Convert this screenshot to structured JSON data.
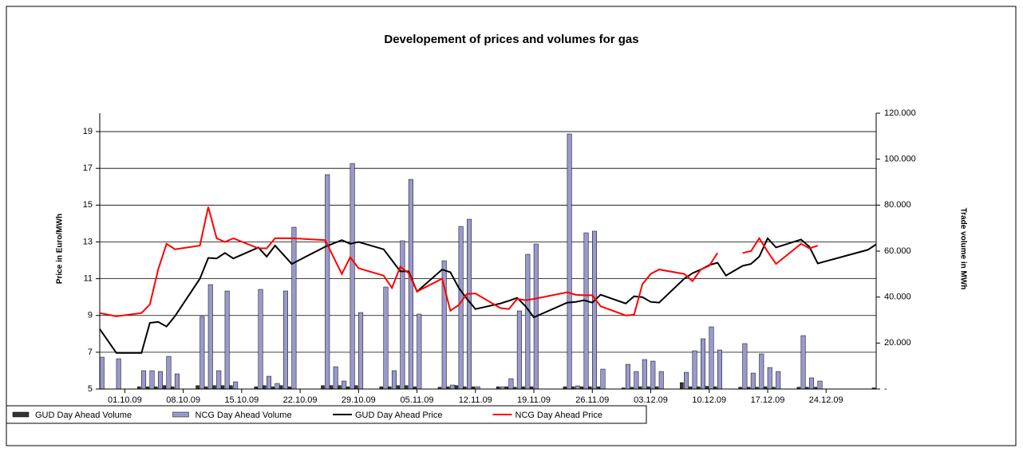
{
  "chart_data": {
    "type": "bar-line",
    "title": "Developement of prices and volumes for gas",
    "y_label": "Price in Euro/MWh",
    "y2_label": "Trade volume in MWh",
    "legend": "bottom-left",
    "grid": true,
    "xlim": [
      "28.09.09",
      "30.12.09"
    ],
    "xticks": [
      "01.10.09",
      "08.10.09",
      "15.10.09",
      "22.10.09",
      "29.10.09",
      "05.11.09",
      "12.11.09",
      "19.11.09",
      "26.11.09",
      "03.12.09",
      "10.12.09",
      "17.12.09",
      "24.12.09"
    ],
    "ylim": [
      5,
      20
    ],
    "yticks": [
      5,
      7,
      9,
      11,
      13,
      15,
      17,
      19
    ],
    "y2lim": [
      0,
      120000
    ],
    "y2ticks": [
      {
        "value": 0,
        "label": "-"
      },
      {
        "value": 20000,
        "label": "20.000"
      },
      {
        "value": 40000,
        "label": "40.000"
      },
      {
        "value": 60000,
        "label": "60.000"
      },
      {
        "value": 80000,
        "label": "80.000"
      },
      {
        "value": 100000,
        "label": "100.000"
      },
      {
        "value": 120000,
        "label": "120.000"
      }
    ],
    "x": [
      "28.09.09",
      "30.09.09",
      "03.10.09",
      "04.10.09",
      "05.10.09",
      "06.10.09",
      "07.10.09",
      "10.10.09",
      "11.10.09",
      "12.10.09",
      "13.10.09",
      "14.10.09",
      "17.10.09",
      "18.10.09",
      "19.10.09",
      "20.10.09",
      "21.10.09",
      "25.10.09",
      "26.10.09",
      "27.10.09",
      "28.10.09",
      "29.10.09",
      "01.11.09",
      "02.11.09",
      "03.11.09",
      "04.11.09",
      "05.11.09",
      "08.11.09",
      "09.11.09",
      "10.11.09",
      "11.11.09",
      "12.11.09",
      "15.11.09",
      "16.11.09",
      "17.11.09",
      "18.11.09",
      "19.11.09",
      "23.11.09",
      "24.11.09",
      "25.11.09",
      "26.11.09",
      "27.11.09",
      "30.11.09",
      "01.12.09",
      "02.12.09",
      "03.12.09",
      "04.12.09",
      "07.12.09",
      "08.12.09",
      "09.12.09",
      "10.12.09",
      "11.12.09",
      "12.12.09",
      "14.12.09",
      "15.12.09",
      "16.12.09",
      "17.12.09",
      "18.12.09",
      "21.12.09",
      "22.12.09",
      "23.12.09",
      "29.12.09",
      "30.12.09"
    ],
    "series": [
      {
        "name": "GUD Day Ahead Volume",
        "kind": "bar",
        "axis": "y2",
        "color": "#333333",
        "values": [
          null,
          null,
          1000,
          1000,
          1000,
          1500,
          1000,
          1500,
          1000,
          1500,
          1500,
          1500,
          1000,
          1500,
          1000,
          1500,
          1000,
          1500,
          1500,
          1500,
          1000,
          1500,
          1000,
          1000,
          1500,
          1500,
          1000,
          800,
          1000,
          1500,
          1000,
          1000,
          1000,
          1000,
          800,
          1000,
          1000,
          1000,
          1000,
          1000,
          1000,
          1000,
          500,
          800,
          1000,
          1000,
          1000,
          2800,
          1000,
          1000,
          1200,
          1000,
          null,
          800,
          800,
          800,
          1000,
          800,
          800,
          800,
          800,
          null,
          500
        ]
      },
      {
        "name": "NCG Day Ahead Volume",
        "kind": "bar",
        "axis": "y2",
        "color": "#9999cc",
        "values": [
          13870,
          13180,
          7980,
          7980,
          7630,
          14220,
          6590,
          31560,
          45430,
          7980,
          42660,
          3120,
          43350,
          5550,
          2430,
          42660,
          70400,
          93290,
          9710,
          3470,
          98140,
          33290,
          44390,
          7980,
          64500,
          91210,
          32600,
          55830,
          1730,
          70750,
          73870,
          1040,
          1000,
          4510,
          33990,
          58610,
          63120,
          110980,
          1390,
          67970,
          68670,
          8670,
          10750,
          7630,
          12830,
          12140,
          7630,
          7280,
          16650,
          21850,
          27050,
          16990,
          null,
          19770,
          6940,
          15260,
          9360,
          7630,
          23240,
          4860,
          3470,
          null,
          null
        ]
      },
      {
        "name": "GUD Day Ahead Price",
        "kind": "line",
        "axis": "y",
        "color": "#000000",
        "values": [
          8.26,
          6.96,
          6.96,
          8.6,
          8.65,
          8.4,
          8.96,
          11.0,
          12.13,
          12.1,
          12.4,
          12.1,
          12.7,
          12.2,
          12.8,
          12.3,
          11.8,
          12.74,
          12.92,
          13.1,
          12.9,
          13.0,
          12.6,
          12.0,
          11.4,
          11.4,
          10.3,
          11.5,
          11.35,
          10.5,
          9.9,
          9.35,
          9.65,
          9.8,
          9.96,
          9.5,
          8.9,
          9.7,
          9.74,
          9.83,
          9.7,
          10.13,
          9.65,
          10.04,
          10.0,
          9.74,
          9.7,
          11.0,
          11.3,
          11.5,
          11.74,
          11.87,
          11.17,
          11.7,
          11.8,
          12.2,
          13.2,
          12.7,
          13.13,
          12.74,
          11.83,
          12.57,
          12.87
        ]
      },
      {
        "name": "NCG Day Ahead Price",
        "kind": "line",
        "axis": "y",
        "color": "#ff0000",
        "values": [
          9.13,
          8.96,
          9.13,
          9.6,
          11.5,
          12.9,
          12.6,
          12.8,
          14.9,
          13.2,
          13.0,
          13.2,
          12.65,
          12.65,
          13.2,
          13.2,
          13.2,
          13.1,
          12.18,
          11.26,
          12.17,
          11.57,
          11.17,
          10.5,
          11.65,
          11.3,
          10.3,
          11.0,
          9.26,
          9.57,
          10.17,
          10.2,
          9.4,
          9.35,
          9.9,
          9.83,
          9.9,
          10.26,
          10.13,
          10.1,
          10.1,
          9.5,
          9.0,
          9.04,
          10.7,
          11.26,
          11.5,
          11.26,
          10.87,
          11.5,
          11.7,
          12.4,
          null,
          12.4,
          12.5,
          13.2,
          12.47,
          11.8,
          12.9,
          12.65,
          12.8,
          null,
          null
        ]
      }
    ]
  }
}
